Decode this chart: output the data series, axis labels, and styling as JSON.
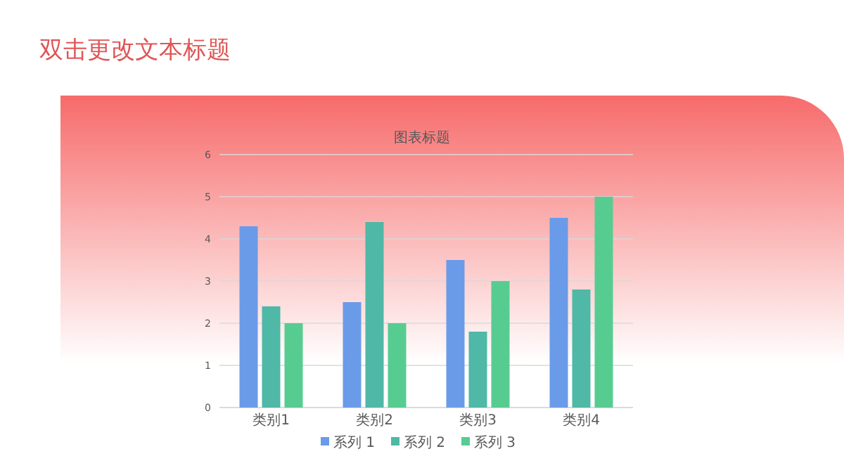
{
  "chart_data": {
    "type": "bar",
    "title": "双击更改文本标题",
    "subtitle": "图表标题",
    "categories": [
      "类别1",
      "类别2",
      "类别3",
      "类别4"
    ],
    "series": [
      {
        "name": "系列 1",
        "color": "#6a9be8",
        "values": [
          4.3,
          2.5,
          3.5,
          4.5
        ]
      },
      {
        "name": "系列 2",
        "color": "#4fb8a6",
        "values": [
          2.4,
          4.4,
          1.8,
          2.8
        ]
      },
      {
        "name": "系列 3",
        "color": "#57cc91",
        "values": [
          2,
          2,
          3,
          5
        ]
      }
    ],
    "ylim": [
      0,
      6
    ],
    "yticks": [
      0,
      1,
      2,
      3,
      4,
      5,
      6
    ],
    "grid": "y",
    "legend": "bottom"
  }
}
